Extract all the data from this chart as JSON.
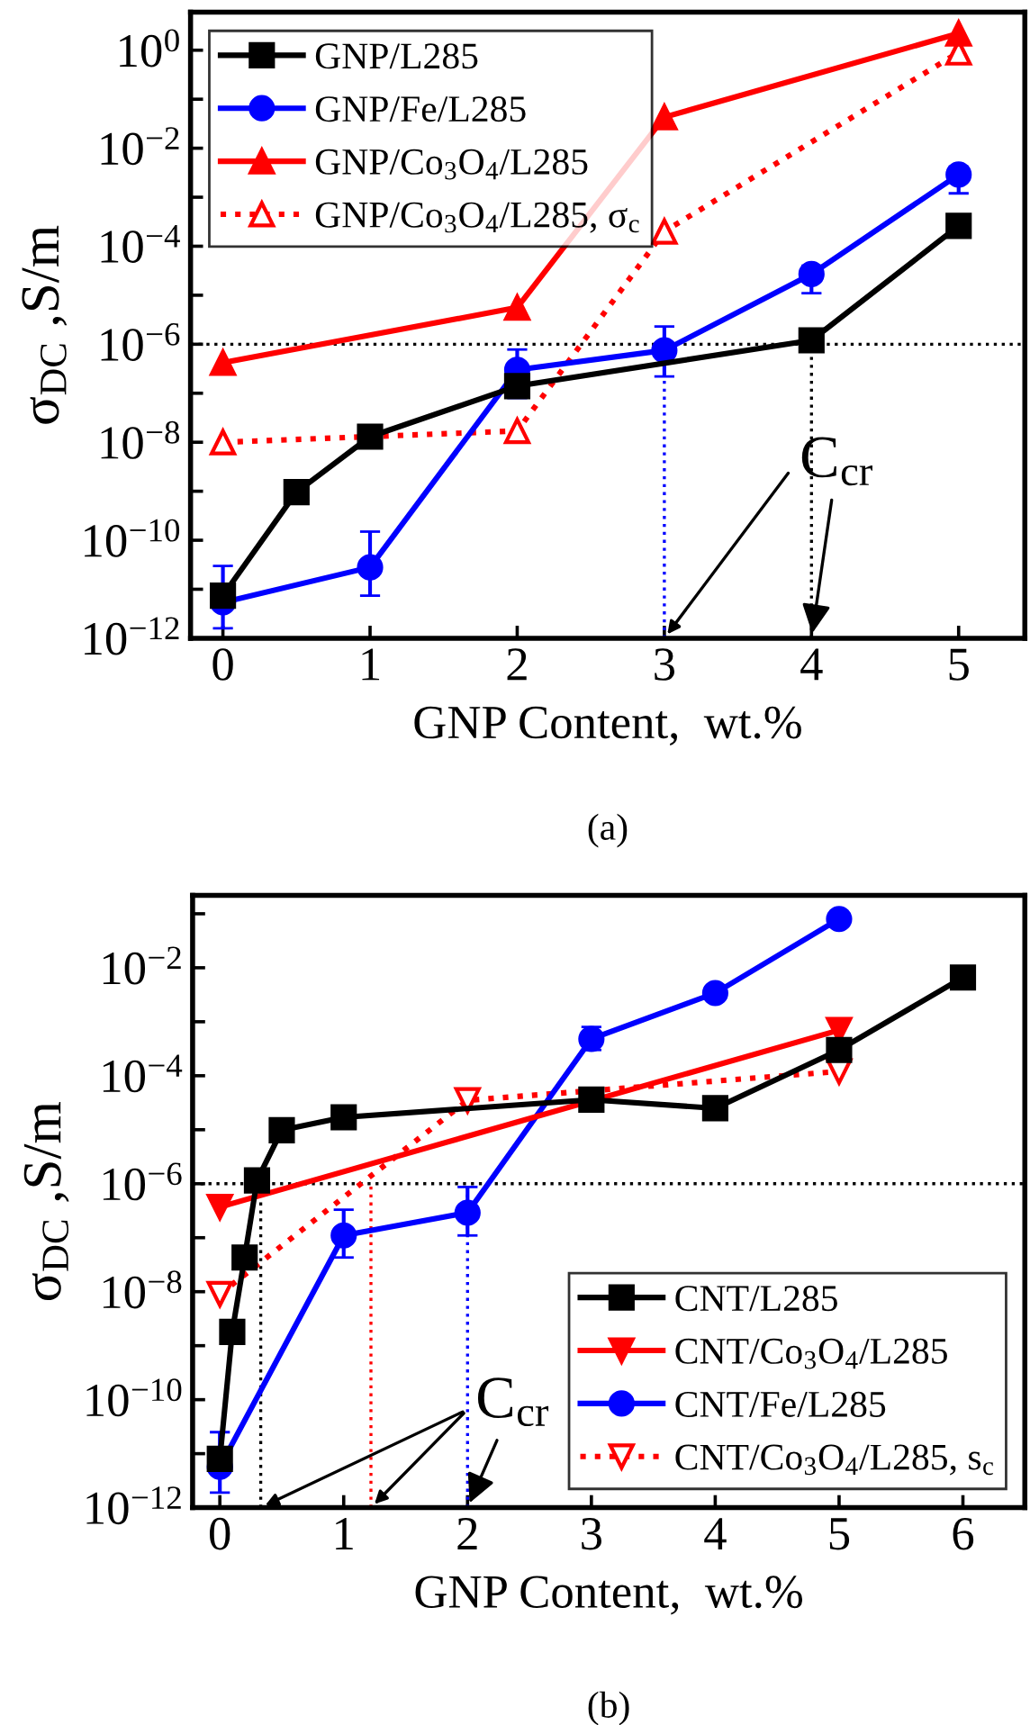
{
  "chart_data": [
    {
      "type": "line",
      "title": "(a)",
      "xlabel": "GNP Content,  wt.%",
      "ylabel": "σ$_{DC}$ ,S/m",
      "log": "y",
      "legend": "top left",
      "grid": false,
      "xlim": [
        -0.22,
        5.45
      ],
      "xticks": [
        0,
        1,
        2,
        3,
        4,
        5
      ],
      "ylim": [
        1e-12,
        6
      ],
      "yticks": [
        {
          "value": 1e-12,
          "label": "10$^{−12}$"
        },
        {
          "value": 1e-11,
          "label": null
        },
        {
          "value": 1e-10,
          "label": "10$^{−10}$"
        },
        {
          "value": 1e-09,
          "label": null
        },
        {
          "value": 1e-08,
          "label": "10$^{−8}$"
        },
        {
          "value": 1e-07,
          "label": null
        },
        {
          "value": 1e-06,
          "label": "10$^{−6}$"
        },
        {
          "value": 1e-05,
          "label": null
        },
        {
          "value": 0.0001,
          "label": "10$^{−4}$"
        },
        {
          "value": 0.001,
          "label": null
        },
        {
          "value": 0.01,
          "label": "10$^{−2}$"
        },
        {
          "value": 0.1,
          "label": null
        },
        {
          "value": 1,
          "label": "10$^{0}$"
        }
      ],
      "series": [
        {
          "name": "GNP/L285",
          "color": "#000000",
          "marker": "square",
          "line_style": "solid",
          "x": [
            0,
            0.5,
            1,
            2,
            4,
            5
          ],
          "values": [
            7.4e-12,
            9.6e-10,
            1.3e-08,
            1.4e-07,
            1.2e-06,
            0.00026
          ]
        },
        {
          "name": "GNP/Fe/L285",
          "color": "#0000ff",
          "marker": "circle",
          "line_style": "solid",
          "x": [
            0,
            1,
            2,
            3,
            4,
            5
          ],
          "values": [
            5.4e-12,
            2.8e-11,
            3e-07,
            7.5e-07,
            2.7e-05,
            0.0029
          ],
          "errors": [
            [
              1.6e-12,
              3e-11
            ],
            [
              7.4e-12,
              1.5e-10
            ],
            [
              8e-08,
              7.8e-07
            ],
            [
              2.2e-07,
              2.3e-06
            ],
            [
              1.1e-05,
              4e-05
            ],
            [
              0.0012,
              0.0042
            ]
          ]
        },
        {
          "name": "GNP/Co$_{3}$O$_{4}$/L285",
          "color": "#ff0000",
          "marker": "triangle",
          "line_style": "solid",
          "x": [
            0,
            2,
            3,
            5
          ],
          "values": [
            4.2e-07,
            5.6e-06,
            0.043,
            2.2
          ]
        },
        {
          "name": "GNP/Co$_{3}$O$_{4}$/L285, σ$_{c}$",
          "color": "#ff0000",
          "marker": "triangle",
          "line_style": "dotted",
          "x": [
            0,
            2,
            3,
            5
          ],
          "values": [
            1e-08,
            1.7e-08,
            0.0002,
            0.9
          ]
        }
      ],
      "ref_lines": [
        {
          "axis": "y",
          "value": 1e-06,
          "color": "#000000",
          "line_style": "dotted"
        },
        {
          "axis": "x",
          "value": 3,
          "color": "#0000ff",
          "line_style": "dotted"
        },
        {
          "axis": "x",
          "value": 4,
          "color": "#000000",
          "line_style": "dotted"
        }
      ],
      "annotations": [
        {
          "text": "C$_{cr}$",
          "x": 4,
          "y": 1e-12
        }
      ]
    },
    {
      "type": "line",
      "title": "(b)",
      "xlabel": "GNP Content,  wt.%",
      "ylabel": "σ$_{DC}$ ,S/m",
      "log": "y",
      "legend": "bottom right",
      "grid": false,
      "xlim": [
        -0.22,
        6.5
      ],
      "xticks": [
        0,
        1,
        2,
        3,
        4,
        5,
        6
      ],
      "ylim": [
        1e-12,
        0.22
      ],
      "yticks": [
        {
          "value": 1e-12,
          "label": "10$^{−12}$"
        },
        {
          "value": 1e-11,
          "label": null
        },
        {
          "value": 1e-10,
          "label": "10$^{−10}$"
        },
        {
          "value": 1e-09,
          "label": null
        },
        {
          "value": 1e-08,
          "label": "10$^{−8}$"
        },
        {
          "value": 1e-07,
          "label": null
        },
        {
          "value": 1e-06,
          "label": "10$^{−6}$"
        },
        {
          "value": 1e-05,
          "label": null
        },
        {
          "value": 0.0001,
          "label": "10$^{−4}$"
        },
        {
          "value": 0.001,
          "label": null
        },
        {
          "value": 0.01,
          "label": "10$^{−2}$"
        },
        {
          "value": 0.1,
          "label": null
        }
      ],
      "series": [
        {
          "name": "CNT/L285",
          "color": "#000000",
          "marker": "square",
          "line_style": "solid",
          "x": [
            0,
            0.1,
            0.2,
            0.3,
            0.5,
            1,
            3,
            4,
            5,
            6
          ],
          "values": [
            8e-12,
            1.8e-09,
            4.3e-08,
            1.15e-06,
            9.8e-06,
            1.7e-05,
            3.6e-05,
            2.5e-05,
            0.0003,
            0.0066
          ]
        },
        {
          "name": "CNT/Co$_{3}$O$_{4}$/L285",
          "color": "#ff0000",
          "marker": "triangle-down",
          "line_style": "solid",
          "x": [
            0,
            5
          ],
          "values": [
            3.7e-07,
            0.0007
          ]
        },
        {
          "name": "CNT/Fe/L285",
          "color": "#0000ff",
          "marker": "circle",
          "line_style": "solid",
          "x": [
            0,
            1,
            2,
            3,
            4,
            5
          ],
          "values": [
            5.7e-12,
            1.1e-07,
            2.9e-07,
            0.00048,
            0.0034,
            0.08
          ],
          "errors": [
            [
              1.9e-12,
              2.5e-11
            ],
            [
              4.3e-08,
              3.3e-07
            ],
            [
              1.1e-07,
              8.7e-07
            ],
            [
              0.0003,
              0.0008
            ],
            null,
            null
          ]
        },
        {
          "name": "CNT/Co$_{3}$O$_{4}$/L285, s$_{c}$",
          "color": "#ff0000",
          "marker": "triangle-down",
          "line_style": "dotted",
          "x": [
            0,
            2,
            5
          ],
          "values": [
            9e-09,
            3.5e-05,
            0.00012
          ]
        }
      ],
      "ref_lines": [
        {
          "axis": "y",
          "value": 1e-06,
          "color": "#000000",
          "line_style": "dotted"
        },
        {
          "axis": "x",
          "value": 0.33,
          "color": "#000000",
          "line_style": "dotted"
        },
        {
          "axis": "x",
          "value": 1.22,
          "color": "#ff0000",
          "line_style": "dotted"
        },
        {
          "axis": "x",
          "value": 2,
          "color": "#0000ff",
          "line_style": "dotted"
        }
      ],
      "annotations": [
        {
          "text": "C$_{cr}$",
          "x": 2,
          "y": 1e-12
        }
      ]
    }
  ]
}
